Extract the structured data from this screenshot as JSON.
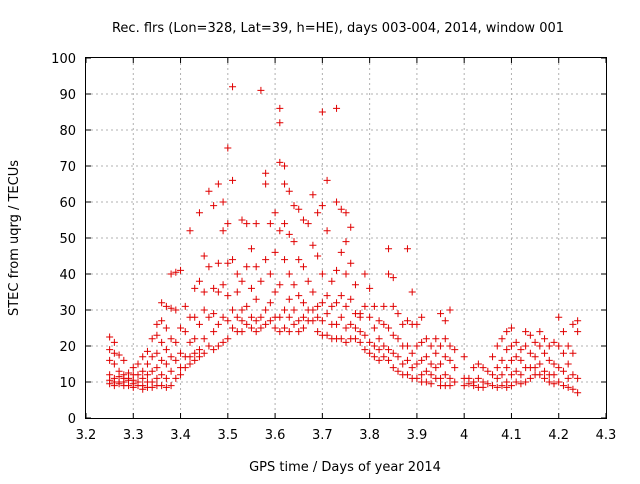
{
  "chart_data": {
    "type": "scatter",
    "title": "Rec. flrs (Lon=328, Lat=39, h=HE), days 003-004, 2014, window 001",
    "xlabel": "GPS time / Days of year 2014",
    "ylabel": "STEC from uqrg / TECUs",
    "xlim": [
      3.2,
      4.3
    ],
    "ylim": [
      0,
      100
    ],
    "x_ticks": [
      "3.2",
      "3.3",
      "3.4",
      "3.5",
      "3.6",
      "3.7",
      "3.8",
      "3.9",
      "4",
      "4.1",
      "4.2",
      "4.3"
    ],
    "y_ticks": [
      "0",
      "10",
      "20",
      "30",
      "40",
      "50",
      "60",
      "70",
      "80",
      "90",
      "100"
    ],
    "grid": true,
    "marker": "+",
    "color": "#e00000",
    "points": [
      [
        3.25,
        22.5
      ],
      [
        3.25,
        19
      ],
      [
        3.25,
        16
      ],
      [
        3.25,
        12
      ],
      [
        3.25,
        10.5
      ],
      [
        3.25,
        9.5
      ],
      [
        3.26,
        21
      ],
      [
        3.26,
        18
      ],
      [
        3.26,
        15
      ],
      [
        3.26,
        11
      ],
      [
        3.26,
        10
      ],
      [
        3.26,
        9
      ],
      [
        3.27,
        17.5
      ],
      [
        3.27,
        13
      ],
      [
        3.27,
        11.5
      ],
      [
        3.27,
        10
      ],
      [
        3.27,
        9.5
      ],
      [
        3.28,
        16
      ],
      [
        3.28,
        12
      ],
      [
        3.28,
        11
      ],
      [
        3.28,
        10
      ],
      [
        3.28,
        9
      ],
      [
        3.29,
        12.5
      ],
      [
        3.29,
        11
      ],
      [
        3.29,
        10.5
      ],
      [
        3.29,
        9
      ],
      [
        3.3,
        14
      ],
      [
        3.3,
        12
      ],
      [
        3.3,
        10.5
      ],
      [
        3.3,
        9.5
      ],
      [
        3.3,
        8.5
      ],
      [
        3.31,
        15
      ],
      [
        3.31,
        12
      ],
      [
        3.31,
        10
      ],
      [
        3.31,
        9
      ],
      [
        3.32,
        17
      ],
      [
        3.32,
        13
      ],
      [
        3.32,
        11
      ],
      [
        3.32,
        9
      ],
      [
        3.32,
        8
      ],
      [
        3.33,
        18.5
      ],
      [
        3.33,
        15
      ],
      [
        3.33,
        12
      ],
      [
        3.33,
        10
      ],
      [
        3.33,
        8.5
      ],
      [
        3.34,
        22
      ],
      [
        3.34,
        17
      ],
      [
        3.34,
        13
      ],
      [
        3.34,
        10
      ],
      [
        3.34,
        8.5
      ],
      [
        3.35,
        26
      ],
      [
        3.35,
        23
      ],
      [
        3.35,
        18
      ],
      [
        3.35,
        14
      ],
      [
        3.35,
        11
      ],
      [
        3.35,
        9
      ],
      [
        3.36,
        32
      ],
      [
        3.36,
        27
      ],
      [
        3.36,
        21
      ],
      [
        3.36,
        16
      ],
      [
        3.36,
        12
      ],
      [
        3.36,
        9
      ],
      [
        3.37,
        31
      ],
      [
        3.37,
        25
      ],
      [
        3.37,
        19
      ],
      [
        3.37,
        15
      ],
      [
        3.37,
        11
      ],
      [
        3.37,
        8.5
      ],
      [
        3.38,
        40
      ],
      [
        3.38,
        30.5
      ],
      [
        3.38,
        22
      ],
      [
        3.38,
        17
      ],
      [
        3.38,
        13
      ],
      [
        3.38,
        9
      ],
      [
        3.39,
        40.5
      ],
      [
        3.39,
        30
      ],
      [
        3.39,
        21
      ],
      [
        3.39,
        16
      ],
      [
        3.39,
        11
      ],
      [
        3.4,
        41
      ],
      [
        3.4,
        25
      ],
      [
        3.4,
        18
      ],
      [
        3.4,
        14
      ],
      [
        3.4,
        12
      ],
      [
        3.41,
        31
      ],
      [
        3.41,
        24
      ],
      [
        3.41,
        17
      ],
      [
        3.41,
        14
      ],
      [
        3.42,
        52
      ],
      [
        3.42,
        28
      ],
      [
        3.42,
        21
      ],
      [
        3.42,
        17
      ],
      [
        3.42,
        15
      ],
      [
        3.43,
        36
      ],
      [
        3.43,
        28
      ],
      [
        3.43,
        22
      ],
      [
        3.43,
        18
      ],
      [
        3.43,
        16
      ],
      [
        3.44,
        57
      ],
      [
        3.44,
        38
      ],
      [
        3.44,
        26
      ],
      [
        3.44,
        19
      ],
      [
        3.44,
        17
      ],
      [
        3.45,
        45
      ],
      [
        3.45,
        35
      ],
      [
        3.45,
        30
      ],
      [
        3.45,
        22
      ],
      [
        3.45,
        18
      ],
      [
        3.46,
        63
      ],
      [
        3.46,
        42
      ],
      [
        3.46,
        28
      ],
      [
        3.46,
        20
      ],
      [
        3.47,
        59
      ],
      [
        3.47,
        36
      ],
      [
        3.47,
        29
      ],
      [
        3.47,
        24
      ],
      [
        3.47,
        19
      ],
      [
        3.48,
        65
      ],
      [
        3.48,
        43
      ],
      [
        3.48,
        35
      ],
      [
        3.48,
        26
      ],
      [
        3.48,
        20
      ],
      [
        3.49,
        60
      ],
      [
        3.49,
        52
      ],
      [
        3.49,
        37
      ],
      [
        3.49,
        28
      ],
      [
        3.49,
        21
      ],
      [
        3.5,
        75
      ],
      [
        3.5,
        54
      ],
      [
        3.5,
        43
      ],
      [
        3.5,
        34
      ],
      [
        3.5,
        27
      ],
      [
        3.5,
        22
      ],
      [
        3.51,
        92
      ],
      [
        3.51,
        66
      ],
      [
        3.51,
        44
      ],
      [
        3.51,
        30
      ],
      [
        3.51,
        25
      ],
      [
        3.52,
        40
      ],
      [
        3.52,
        35
      ],
      [
        3.52,
        28
      ],
      [
        3.52,
        24
      ],
      [
        3.53,
        55
      ],
      [
        3.53,
        38
      ],
      [
        3.53,
        30
      ],
      [
        3.53,
        27
      ],
      [
        3.53,
        24
      ],
      [
        3.54,
        54
      ],
      [
        3.54,
        42
      ],
      [
        3.54,
        31
      ],
      [
        3.54,
        26
      ],
      [
        3.55,
        47
      ],
      [
        3.55,
        36
      ],
      [
        3.55,
        28
      ],
      [
        3.55,
        25
      ],
      [
        3.56,
        54
      ],
      [
        3.56,
        42
      ],
      [
        3.56,
        33
      ],
      [
        3.56,
        27
      ],
      [
        3.56,
        24
      ],
      [
        3.57,
        91
      ],
      [
        3.57,
        38
      ],
      [
        3.57,
        28
      ],
      [
        3.57,
        25
      ],
      [
        3.58,
        68
      ],
      [
        3.58,
        65
      ],
      [
        3.58,
        44
      ],
      [
        3.58,
        30
      ],
      [
        3.58,
        26
      ],
      [
        3.59,
        54
      ],
      [
        3.59,
        40
      ],
      [
        3.59,
        32
      ],
      [
        3.59,
        27
      ],
      [
        3.6,
        57
      ],
      [
        3.6,
        46
      ],
      [
        3.6,
        35
      ],
      [
        3.6,
        28
      ],
      [
        3.6,
        25
      ],
      [
        3.61,
        86
      ],
      [
        3.61,
        82
      ],
      [
        3.61,
        71
      ],
      [
        3.61,
        52
      ],
      [
        3.61,
        37
      ],
      [
        3.61,
        28
      ],
      [
        3.61,
        24
      ],
      [
        3.62,
        70
      ],
      [
        3.62,
        65
      ],
      [
        3.62,
        54
      ],
      [
        3.62,
        44
      ],
      [
        3.62,
        30
      ],
      [
        3.62,
        25
      ],
      [
        3.63,
        63
      ],
      [
        3.63,
        51
      ],
      [
        3.63,
        40
      ],
      [
        3.63,
        33
      ],
      [
        3.63,
        28
      ],
      [
        3.63,
        24
      ],
      [
        3.64,
        59
      ],
      [
        3.64,
        49
      ],
      [
        3.64,
        37
      ],
      [
        3.64,
        30
      ],
      [
        3.64,
        26
      ],
      [
        3.65,
        58
      ],
      [
        3.65,
        44
      ],
      [
        3.65,
        34
      ],
      [
        3.65,
        27
      ],
      [
        3.65,
        24
      ],
      [
        3.66,
        55
      ],
      [
        3.66,
        42
      ],
      [
        3.66,
        32
      ],
      [
        3.66,
        28
      ],
      [
        3.66,
        25
      ],
      [
        3.67,
        54
      ],
      [
        3.67,
        38
      ],
      [
        3.67,
        30
      ],
      [
        3.67,
        27
      ],
      [
        3.68,
        62
      ],
      [
        3.68,
        48
      ],
      [
        3.68,
        35
      ],
      [
        3.68,
        30
      ],
      [
        3.68,
        27
      ],
      [
        3.69,
        57
      ],
      [
        3.69,
        45
      ],
      [
        3.69,
        31
      ],
      [
        3.69,
        28
      ],
      [
        3.69,
        24
      ],
      [
        3.7,
        85
      ],
      [
        3.7,
        59
      ],
      [
        3.7,
        40
      ],
      [
        3.7,
        32
      ],
      [
        3.7,
        27
      ],
      [
        3.7,
        23
      ],
      [
        3.71,
        66
      ],
      [
        3.71,
        52
      ],
      [
        3.71,
        34
      ],
      [
        3.71,
        29
      ],
      [
        3.71,
        23
      ],
      [
        3.72,
        38
      ],
      [
        3.72,
        31
      ],
      [
        3.72,
        26
      ],
      [
        3.72,
        22
      ],
      [
        3.73,
        86
      ],
      [
        3.73,
        60
      ],
      [
        3.73,
        41
      ],
      [
        3.73,
        32
      ],
      [
        3.73,
        26
      ],
      [
        3.73,
        22
      ],
      [
        3.74,
        58
      ],
      [
        3.74,
        46
      ],
      [
        3.74,
        34
      ],
      [
        3.74,
        28
      ],
      [
        3.74,
        22
      ],
      [
        3.75,
        57
      ],
      [
        3.75,
        49
      ],
      [
        3.75,
        40
      ],
      [
        3.75,
        31
      ],
      [
        3.75,
        25
      ],
      [
        3.75,
        21
      ],
      [
        3.76,
        53
      ],
      [
        3.76,
        43
      ],
      [
        3.76,
        33
      ],
      [
        3.76,
        26
      ],
      [
        3.76,
        22
      ],
      [
        3.77,
        37
      ],
      [
        3.77,
        29
      ],
      [
        3.77,
        25
      ],
      [
        3.77,
        22
      ],
      [
        3.78,
        29
      ],
      [
        3.78,
        28
      ],
      [
        3.78,
        24
      ],
      [
        3.78,
        21
      ],
      [
        3.79,
        40
      ],
      [
        3.79,
        31
      ],
      [
        3.79,
        23
      ],
      [
        3.79,
        19
      ],
      [
        3.8,
        36
      ],
      [
        3.8,
        28
      ],
      [
        3.8,
        21
      ],
      [
        3.8,
        18
      ],
      [
        3.81,
        31
      ],
      [
        3.81,
        25
      ],
      [
        3.81,
        20
      ],
      [
        3.81,
        17
      ],
      [
        3.82,
        27
      ],
      [
        3.82,
        22
      ],
      [
        3.82,
        19
      ],
      [
        3.82,
        16
      ],
      [
        3.83,
        31
      ],
      [
        3.83,
        26
      ],
      [
        3.83,
        20
      ],
      [
        3.83,
        17
      ],
      [
        3.84,
        47
      ],
      [
        3.84,
        40
      ],
      [
        3.84,
        25
      ],
      [
        3.84,
        19
      ],
      [
        3.84,
        16
      ],
      [
        3.85,
        39
      ],
      [
        3.85,
        31
      ],
      [
        3.85,
        23
      ],
      [
        3.85,
        18
      ],
      [
        3.85,
        14
      ],
      [
        3.86,
        29
      ],
      [
        3.86,
        22
      ],
      [
        3.86,
        17
      ],
      [
        3.86,
        13
      ],
      [
        3.87,
        26
      ],
      [
        3.87,
        20
      ],
      [
        3.87,
        15
      ],
      [
        3.87,
        12
      ],
      [
        3.88,
        47
      ],
      [
        3.88,
        27
      ],
      [
        3.88,
        20
      ],
      [
        3.88,
        16
      ],
      [
        3.88,
        12
      ],
      [
        3.89,
        35
      ],
      [
        3.89,
        26
      ],
      [
        3.89,
        18
      ],
      [
        3.89,
        14
      ],
      [
        3.89,
        11
      ],
      [
        3.9,
        26
      ],
      [
        3.9,
        20
      ],
      [
        3.9,
        15
      ],
      [
        3.9,
        11
      ],
      [
        3.91,
        28
      ],
      [
        3.91,
        21
      ],
      [
        3.91,
        16
      ],
      [
        3.91,
        12
      ],
      [
        3.91,
        10
      ],
      [
        3.92,
        22
      ],
      [
        3.92,
        17
      ],
      [
        3.92,
        13
      ],
      [
        3.92,
        10
      ],
      [
        3.93,
        20
      ],
      [
        3.93,
        15
      ],
      [
        3.93,
        12
      ],
      [
        3.93,
        9.5
      ],
      [
        3.94,
        22
      ],
      [
        3.94,
        18
      ],
      [
        3.94,
        14
      ],
      [
        3.94,
        11
      ],
      [
        3.95,
        29
      ],
      [
        3.95,
        20
      ],
      [
        3.95,
        15
      ],
      [
        3.95,
        11
      ],
      [
        3.95,
        9
      ],
      [
        3.96,
        27
      ],
      [
        3.96,
        22
      ],
      [
        3.96,
        17
      ],
      [
        3.96,
        12
      ],
      [
        3.96,
        9
      ],
      [
        3.97,
        30
      ],
      [
        3.97,
        20
      ],
      [
        3.97,
        16
      ],
      [
        3.97,
        11
      ],
      [
        3.97,
        9
      ],
      [
        3.98,
        19
      ],
      [
        3.98,
        14
      ],
      [
        3.98,
        10
      ],
      [
        4.0,
        17
      ],
      [
        4.0,
        11
      ],
      [
        4.0,
        9
      ],
      [
        4.01,
        11
      ],
      [
        4.01,
        9.5
      ],
      [
        4.02,
        14
      ],
      [
        4.02,
        10
      ],
      [
        4.02,
        9
      ],
      [
        4.03,
        15
      ],
      [
        4.03,
        11
      ],
      [
        4.03,
        8.5
      ],
      [
        4.04,
        14
      ],
      [
        4.04,
        10
      ],
      [
        4.04,
        8.5
      ],
      [
        4.05,
        13
      ],
      [
        4.05,
        9.5
      ],
      [
        4.06,
        17
      ],
      [
        4.06,
        12
      ],
      [
        4.06,
        9
      ],
      [
        4.07,
        20
      ],
      [
        4.07,
        14
      ],
      [
        4.07,
        11
      ],
      [
        4.07,
        8.5
      ],
      [
        4.08,
        22
      ],
      [
        4.08,
        16
      ],
      [
        4.08,
        12
      ],
      [
        4.08,
        9
      ],
      [
        4.09,
        24
      ],
      [
        4.09,
        19
      ],
      [
        4.09,
        14
      ],
      [
        4.09,
        10
      ],
      [
        4.09,
        8.5
      ],
      [
        4.1,
        25
      ],
      [
        4.1,
        20
      ],
      [
        4.1,
        16
      ],
      [
        4.1,
        12
      ],
      [
        4.1,
        9
      ],
      [
        4.11,
        21
      ],
      [
        4.11,
        17
      ],
      [
        4.11,
        13
      ],
      [
        4.11,
        10
      ],
      [
        4.12,
        19
      ],
      [
        4.12,
        16
      ],
      [
        4.12,
        12
      ],
      [
        4.12,
        9.5
      ],
      [
        4.13,
        24
      ],
      [
        4.13,
        20
      ],
      [
        4.13,
        14
      ],
      [
        4.13,
        10
      ],
      [
        4.14,
        23
      ],
      [
        4.14,
        18
      ],
      [
        4.14,
        14
      ],
      [
        4.14,
        11
      ],
      [
        4.15,
        21
      ],
      [
        4.15,
        17
      ],
      [
        4.15,
        14
      ],
      [
        4.15,
        12
      ],
      [
        4.16,
        24
      ],
      [
        4.16,
        20
      ],
      [
        4.16,
        15
      ],
      [
        4.16,
        12
      ],
      [
        4.17,
        22
      ],
      [
        4.17,
        18
      ],
      [
        4.17,
        13
      ],
      [
        4.17,
        11
      ],
      [
        4.18,
        20
      ],
      [
        4.18,
        16
      ],
      [
        4.18,
        12
      ],
      [
        4.18,
        10
      ],
      [
        4.19,
        21
      ],
      [
        4.19,
        15
      ],
      [
        4.19,
        12
      ],
      [
        4.19,
        9.5
      ],
      [
        4.2,
        28
      ],
      [
        4.2,
        20
      ],
      [
        4.2,
        14
      ],
      [
        4.2,
        10
      ],
      [
        4.21,
        24
      ],
      [
        4.21,
        18
      ],
      [
        4.21,
        13
      ],
      [
        4.21,
        9
      ],
      [
        4.22,
        20
      ],
      [
        4.22,
        15
      ],
      [
        4.22,
        11
      ],
      [
        4.22,
        8.5
      ],
      [
        4.23,
        26
      ],
      [
        4.23,
        18
      ],
      [
        4.23,
        12
      ],
      [
        4.23,
        8
      ],
      [
        4.24,
        27
      ],
      [
        4.24,
        24
      ],
      [
        4.24,
        11
      ],
      [
        4.24,
        7
      ]
    ]
  }
}
